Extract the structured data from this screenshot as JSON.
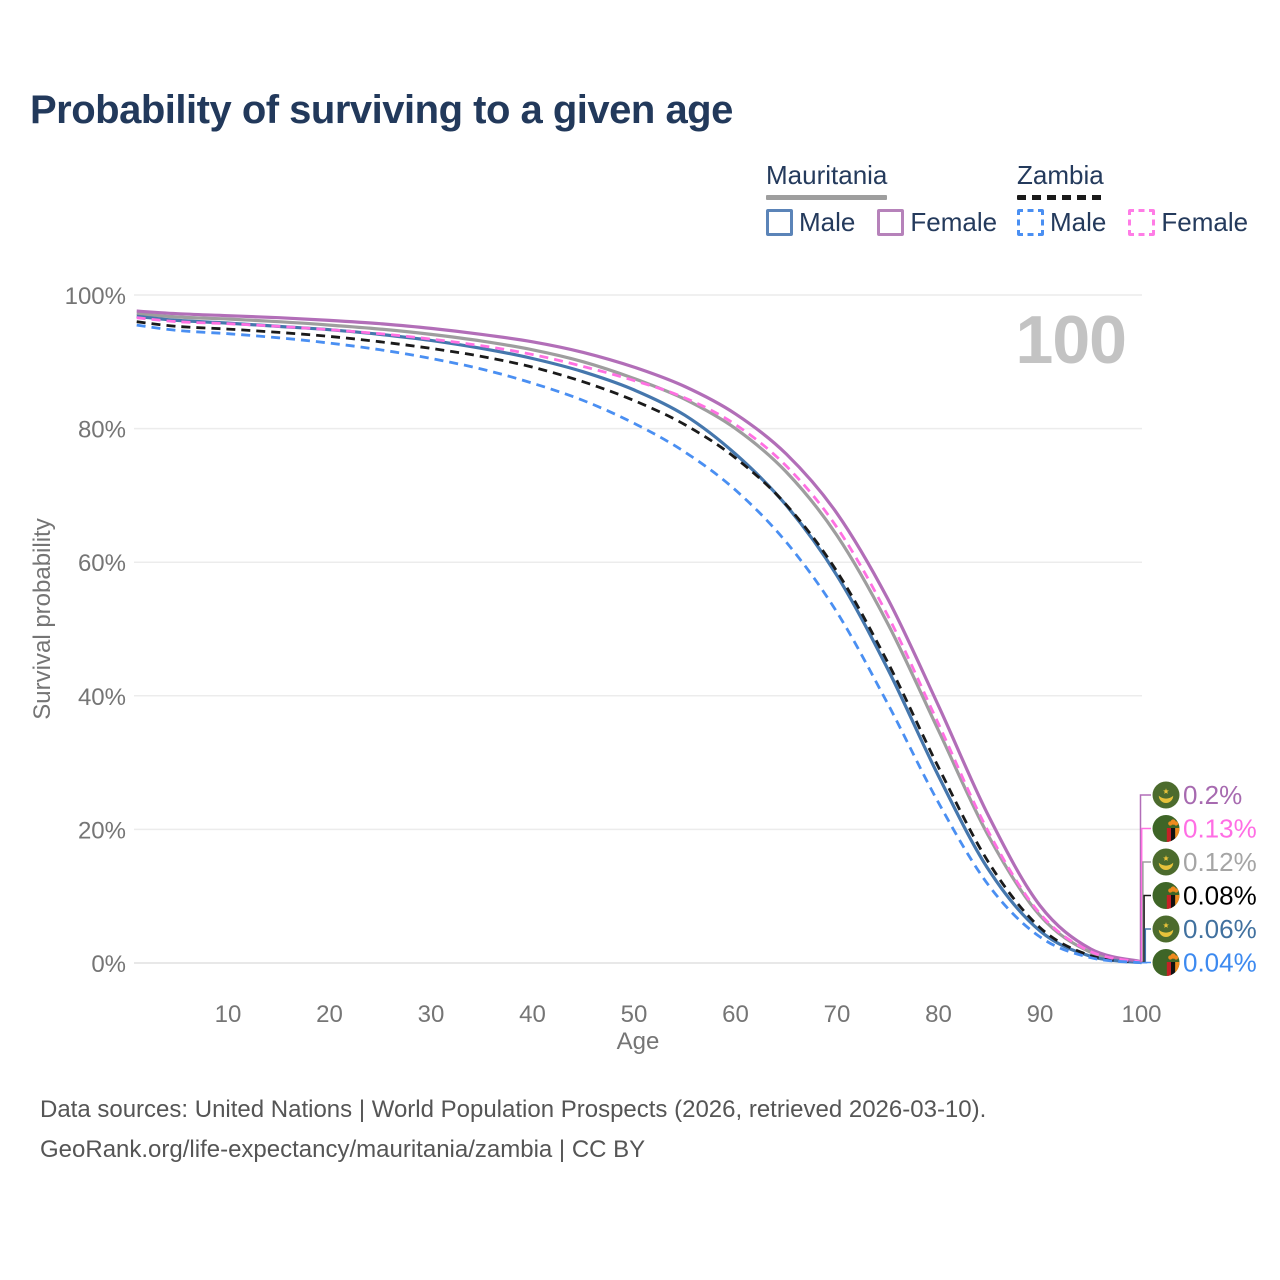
{
  "title": "Probability of surviving to a given age",
  "watermark": "100",
  "legend": {
    "groups": [
      {
        "name": "Mauritania",
        "line_style": "solid",
        "underline_color": "#9e9e9e",
        "items": [
          {
            "label": "Male",
            "color": "#5b84b8",
            "dashed": false
          },
          {
            "label": "Female",
            "color": "#b682ba",
            "dashed": false
          }
        ]
      },
      {
        "name": "Zambia",
        "line_style": "dashed",
        "underline_color": "#1a1a1a",
        "items": [
          {
            "label": "Male",
            "color": "#4a8ff2",
            "dashed": true
          },
          {
            "label": "Female",
            "color": "#ff7ce6",
            "dashed": true
          }
        ]
      }
    ]
  },
  "axes": {
    "y_tick_labels": [
      "0%",
      "20%",
      "40%",
      "60%",
      "80%",
      "100%"
    ],
    "y_tick_values": [
      0,
      20,
      40,
      60,
      80,
      100
    ],
    "x_tick_labels": [
      "10",
      "20",
      "30",
      "40",
      "50",
      "60",
      "70",
      "80",
      "90",
      "100"
    ],
    "x_tick_values": [
      10,
      20,
      30,
      40,
      50,
      60,
      70,
      80,
      90,
      100
    ]
  },
  "chart_data": {
    "type": "line",
    "title": "Probability of surviving to a given age",
    "xlabel": "Age",
    "ylabel": "Survival probability",
    "xlim": [
      0,
      100
    ],
    "ylim": [
      0,
      100
    ],
    "grid": "horizontal-only",
    "legend_position": "top-right",
    "highlighted_age": "100",
    "x": [
      1,
      5,
      10,
      15,
      20,
      25,
      30,
      35,
      40,
      45,
      50,
      55,
      60,
      65,
      70,
      75,
      80,
      85,
      90,
      95,
      100
    ],
    "series": [
      {
        "id": "mauritania-female",
        "country": "Mauritania",
        "sex": "Female",
        "style": "solid",
        "color": "#b26eb8",
        "end_label": "0.2%",
        "label_color": "#a76ab0",
        "flag": "mauritania",
        "values": [
          97.6,
          97.2,
          96.9,
          96.6,
          96.2,
          95.7,
          95.0,
          94.1,
          93.0,
          91.4,
          89.2,
          86.3,
          82.2,
          76.2,
          67.3,
          54.5,
          38.5,
          21.8,
          8.6,
          2.1,
          0.2
        ]
      },
      {
        "id": "zambia-female",
        "country": "Zambia",
        "sex": "Female",
        "style": "dashed",
        "color": "#ff70e2",
        "end_label": "0.13%",
        "label_color": "#ff6ee4",
        "flag": "zambia",
        "values": [
          96.6,
          96.0,
          95.7,
          95.3,
          94.8,
          94.2,
          93.4,
          92.4,
          91.1,
          89.3,
          87.2,
          84.6,
          80.6,
          74.4,
          65.2,
          52.0,
          35.8,
          19.4,
          7.4,
          1.7,
          0.13
        ]
      },
      {
        "id": "mauritania-all",
        "country": "Mauritania",
        "sex": "All",
        "style": "solid",
        "color": "#9e9e9e",
        "end_label": "0.12%",
        "label_color": "#a5a5a5",
        "flag": "mauritania",
        "values": [
          97.2,
          96.7,
          96.4,
          96.0,
          95.5,
          94.9,
          94.1,
          93.1,
          91.8,
          90.0,
          87.5,
          84.4,
          80.0,
          73.5,
          64.0,
          50.8,
          34.8,
          18.8,
          7.1,
          1.6,
          0.12
        ]
      },
      {
        "id": "zambia-all",
        "country": "Zambia",
        "sex": "All",
        "style": "dashed",
        "color": "#1a1a1a",
        "end_label": "0.08%",
        "label_color": "#000000",
        "flag": "zambia",
        "values": [
          96.0,
          95.3,
          94.9,
          94.4,
          93.8,
          93.0,
          92.0,
          90.8,
          89.2,
          87.0,
          84.2,
          80.6,
          75.6,
          68.6,
          58.6,
          45.0,
          29.3,
          14.9,
          5.3,
          1.1,
          0.08
        ]
      },
      {
        "id": "mauritania-male",
        "country": "Mauritania",
        "sex": "Male",
        "style": "solid",
        "color": "#4577ad",
        "end_label": "0.06%",
        "label_color": "#41719f",
        "flag": "mauritania",
        "values": [
          96.8,
          96.2,
          95.8,
          95.3,
          94.8,
          94.1,
          93.2,
          92.0,
          90.5,
          88.5,
          85.8,
          82.0,
          76.2,
          68.5,
          58.0,
          44.0,
          28.0,
          13.8,
          4.8,
          1.0,
          0.06
        ]
      },
      {
        "id": "zambia-male",
        "country": "Zambia",
        "sex": "Male",
        "style": "dashed",
        "color": "#4a8ff2",
        "end_label": "0.04%",
        "label_color": "#3d8af0",
        "flag": "zambia",
        "values": [
          95.5,
          94.7,
          94.2,
          93.6,
          92.8,
          91.8,
          90.5,
          88.9,
          86.8,
          84.2,
          80.8,
          76.5,
          70.8,
          63.0,
          52.5,
          38.8,
          24.0,
          11.5,
          3.9,
          0.8,
          0.04
        ]
      }
    ],
    "draw_order": [
      2,
      4,
      0,
      3,
      1,
      5
    ]
  },
  "footer": {
    "line1": "Data sources: United Nations | World Population Prospects (2026, retrieved 2026-03-10).",
    "line2": "GeoRank.org/life-expectancy/mauritania/zambia | CC BY"
  },
  "colors": {
    "title": "#22395b",
    "axis_text": "#757575",
    "grid": "#ececec",
    "grid_zero": "#e0e0e0",
    "watermark": "#c3c3c3",
    "footer_text": "#555555",
    "mauritania_flag_green": "#4c6b2d",
    "zambia_flag_green": "#3e6527",
    "flag_gold": "#e8c23b",
    "zambia_orange": "#ef8a1e",
    "zambia_red": "#c52126"
  }
}
